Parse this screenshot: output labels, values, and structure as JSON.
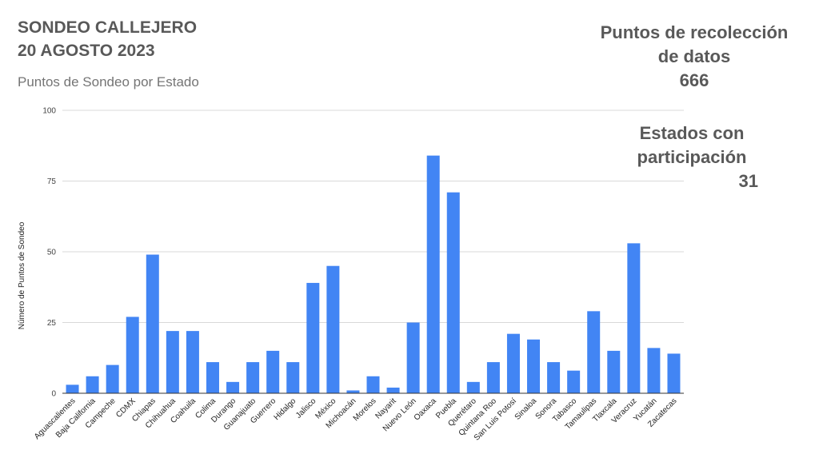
{
  "header": {
    "title_line1": "SONDEO CALLEJERO",
    "title_line2": "20 AGOSTO 2023",
    "subtitle": "Puntos de Sondeo por Estado"
  },
  "stats": {
    "points_label_line1": "Puntos de recolección",
    "points_label_line2": "de datos",
    "points_value": "666",
    "states_label_line1": "Estados con",
    "states_label_line2": "participación",
    "states_value": "31"
  },
  "chart_data": {
    "type": "bar",
    "title": "Puntos de Sondeo por Estado",
    "xlabel": "",
    "ylabel": "Número de Puntos de Sondeo",
    "ylim": [
      0,
      100
    ],
    "yticks": [
      0,
      25,
      50,
      75,
      100
    ],
    "grid": true,
    "bar_color": "#4285f4",
    "categories": [
      "Aguascalientes",
      "Baja California",
      "Campeche",
      "CDMX",
      "Chiapas",
      "Chihuahua",
      "Coahuila",
      "Colima",
      "Durango",
      "Guanajuato",
      "Guerrero",
      "Hidalgo",
      "Jalisco",
      "México",
      "Michoacán",
      "Morelos",
      "Nayarit",
      "Nuevo León",
      "Oaxaca",
      "Puebla",
      "Querétaro",
      "Quintana Roo",
      "San Luis Potosí",
      "Sinaloa",
      "Sonora",
      "Tabasco",
      "Tamaulipas",
      "Tlaxcala",
      "Veracruz",
      "Yucatán",
      "Zacatecas"
    ],
    "values": [
      3,
      6,
      10,
      27,
      49,
      22,
      22,
      11,
      4,
      11,
      15,
      11,
      39,
      45,
      1,
      6,
      2,
      25,
      84,
      71,
      4,
      11,
      21,
      19,
      11,
      8,
      29,
      15,
      53,
      16,
      14
    ]
  }
}
